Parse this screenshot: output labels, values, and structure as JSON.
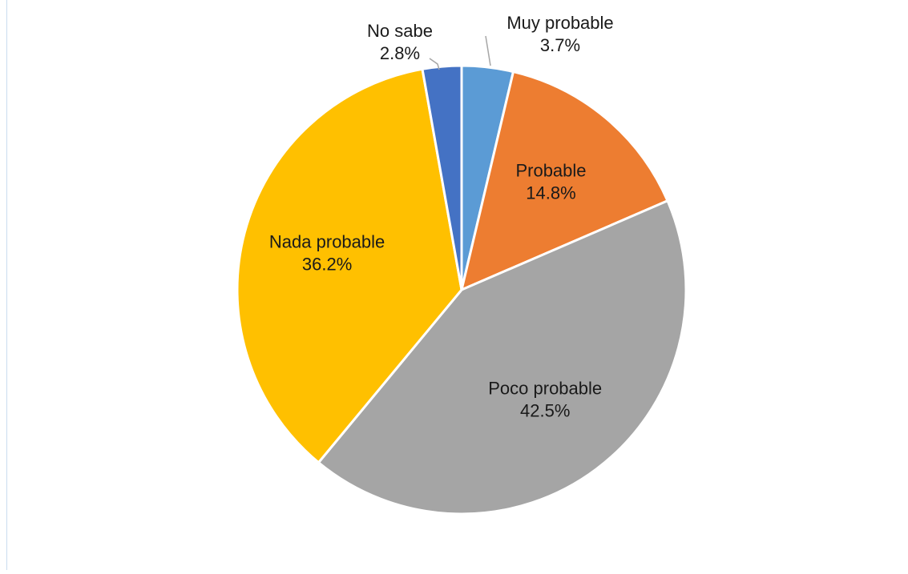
{
  "chart_data": {
    "type": "pie",
    "title": "",
    "unit": "%",
    "start_angle_deg": 0,
    "direction": "clockwise",
    "slices": [
      {
        "label": "Muy probable",
        "value": 3.7,
        "display": "3.7%",
        "color": "#5b9bd5"
      },
      {
        "label": "Probable",
        "value": 14.8,
        "display": "14.8%",
        "color": "#ed7d31"
      },
      {
        "label": "Poco probable",
        "value": 42.5,
        "display": "42.5%",
        "color": "#a5a5a5"
      },
      {
        "label": "Nada probable",
        "value": 36.2,
        "display": "36.2%",
        "color": "#ffc000"
      },
      {
        "label": "No sabe",
        "value": 2.8,
        "display": "2.8%",
        "color": "#4472c4"
      }
    ],
    "legend": "none",
    "slice_border_color": "#ffffff",
    "leader_line_color": "#a6a6a6"
  }
}
